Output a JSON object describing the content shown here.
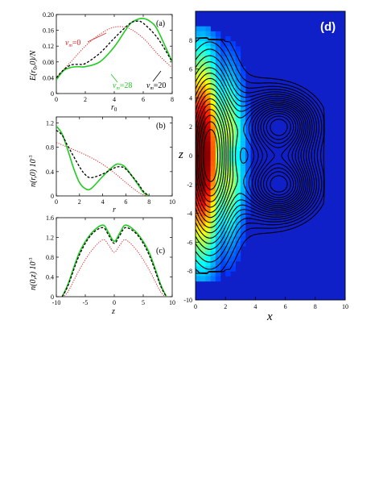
{
  "colors": {
    "red": "#e82020",
    "green": "#22cc22",
    "black": "#000000"
  },
  "chart_data": [
    {
      "type": "line",
      "panel": "(a)",
      "xlabel": "r0",
      "ylabel": "E(r0,0)/N",
      "xlim": [
        0,
        8
      ],
      "ylim": [
        0,
        0.2
      ],
      "xticks": [
        "0",
        "2",
        "4",
        "6",
        "8"
      ],
      "yticks": [
        "0",
        "0.04",
        "0.08",
        "0.12",
        "0.16",
        "0.20"
      ],
      "annotations": [
        "vm=0",
        "vm=28",
        "vm=20"
      ],
      "series": [
        {
          "name": "vm=0",
          "style": "red-dotted",
          "x": [
            0,
            1,
            2,
            3,
            4,
            5,
            6,
            7,
            8
          ],
          "y": [
            0.04,
            0.08,
            0.12,
            0.15,
            0.168,
            0.165,
            0.14,
            0.1,
            0.065
          ]
        },
        {
          "name": "vm=28",
          "style": "green-solid",
          "x": [
            0,
            0.5,
            1,
            1.5,
            2,
            3,
            4,
            5,
            5.5,
            6,
            6.5,
            7,
            8
          ],
          "y": [
            0.035,
            0.058,
            0.066,
            0.068,
            0.068,
            0.08,
            0.118,
            0.172,
            0.186,
            0.19,
            0.182,
            0.16,
            0.08
          ]
        },
        {
          "name": "vm=20",
          "style": "black-dashed",
          "x": [
            0,
            0.5,
            1,
            1.5,
            2,
            3,
            4,
            5,
            5.5,
            6,
            7,
            8
          ],
          "y": [
            0.04,
            0.06,
            0.072,
            0.074,
            0.076,
            0.102,
            0.14,
            0.175,
            0.183,
            0.178,
            0.14,
            0.08
          ]
        }
      ]
    },
    {
      "type": "line",
      "panel": "(b)",
      "xlabel": "r",
      "ylabel": "n(r,0) 10^-3",
      "xlim": [
        0,
        10
      ],
      "ylim": [
        0,
        1.3
      ],
      "xticks": [
        "0",
        "2",
        "4",
        "6",
        "8",
        "10"
      ],
      "yticks": [
        "0",
        "0.4",
        "0.8",
        "1.2"
      ],
      "series": [
        {
          "name": "vm=0",
          "style": "red-dotted",
          "x": [
            0,
            1,
            2,
            3,
            4,
            5,
            6,
            7,
            7.5,
            8
          ],
          "y": [
            0.88,
            0.8,
            0.72,
            0.63,
            0.52,
            0.38,
            0.22,
            0.07,
            0.02,
            0
          ]
        },
        {
          "name": "vm=28",
          "style": "green-solid",
          "x": [
            0,
            0.5,
            1,
            1.5,
            2,
            2.5,
            3,
            4,
            5,
            5.5,
            6,
            7,
            7.5,
            8
          ],
          "y": [
            1.15,
            1.02,
            0.75,
            0.45,
            0.22,
            0.12,
            0.12,
            0.32,
            0.5,
            0.52,
            0.46,
            0.2,
            0.06,
            0
          ]
        },
        {
          "name": "vm=20",
          "style": "black-dashed",
          "x": [
            0,
            0.5,
            1,
            2,
            2.5,
            3,
            4,
            5,
            5.5,
            6,
            7,
            7.5,
            8
          ],
          "y": [
            1.08,
            1.0,
            0.82,
            0.48,
            0.35,
            0.3,
            0.36,
            0.46,
            0.48,
            0.44,
            0.22,
            0.08,
            0
          ]
        }
      ]
    },
    {
      "type": "line",
      "panel": "(c)",
      "xlabel": "z",
      "ylabel": "n(0,z) 10^-3",
      "xlim": [
        -10,
        10
      ],
      "ylim": [
        0,
        1.6
      ],
      "xticks": [
        "-10",
        "-5",
        "0",
        "5",
        "10"
      ],
      "yticks": [
        "0",
        "0.4",
        "0.8",
        "1.2",
        "1.6"
      ],
      "series": [
        {
          "name": "vm=0",
          "style": "red-dotted",
          "x": [
            -9,
            -8,
            -6,
            -4,
            -2,
            -1,
            0,
            1,
            2,
            4,
            6,
            8,
            9
          ],
          "y": [
            0,
            0.1,
            0.55,
            0.92,
            1.15,
            1.05,
            0.9,
            1.05,
            1.15,
            0.92,
            0.55,
            0.1,
            0
          ]
        },
        {
          "name": "vm=28",
          "style": "green-solid",
          "x": [
            -9,
            -8,
            -6,
            -4,
            -2,
            -1,
            0,
            1,
            2,
            4,
            6,
            8,
            9
          ],
          "y": [
            0,
            0.25,
            0.9,
            1.28,
            1.45,
            1.3,
            1.12,
            1.3,
            1.45,
            1.28,
            0.9,
            0.25,
            0
          ]
        },
        {
          "name": "vm=20",
          "style": "black-dashed",
          "x": [
            -9,
            -8,
            -6,
            -4,
            -2,
            -1,
            0,
            1,
            2,
            4,
            6,
            8,
            9
          ],
          "y": [
            0,
            0.22,
            0.85,
            1.25,
            1.4,
            1.25,
            1.08,
            1.25,
            1.4,
            1.25,
            0.85,
            0.22,
            0
          ]
        }
      ]
    },
    {
      "type": "heatmap",
      "panel": "(d)",
      "xlabel": "x",
      "ylabel": "z",
      "xlim": [
        0,
        10
      ],
      "ylim": [
        -10,
        10
      ],
      "xticks": [
        "0",
        "2",
        "4",
        "6",
        "8",
        "10"
      ],
      "yticks": [
        "-10",
        "-8",
        "-6",
        "-4",
        "-2",
        "0",
        "2",
        "4",
        "6",
        "8"
      ],
      "colormap": "jet",
      "maxima": [
        {
          "x": 5.7,
          "z": 2.1
        },
        {
          "x": 5.7,
          "z": -2.1
        },
        {
          "x": 1.3,
          "z": 2.0
        },
        {
          "x": 1.3,
          "z": -2.0
        },
        {
          "x": 2.4,
          "z": 0
        }
      ],
      "contour_levels": 18
    }
  ],
  "labels": {
    "a_panel": "(a)",
    "b_panel": "(b)",
    "c_panel": "(c)",
    "d_panel": "(d)",
    "a_vm0": "v",
    "a_vm0_sub": "m",
    "a_vm0_val": "=0",
    "a_vm28": "v",
    "a_vm28_sub": "m",
    "a_vm28_val": "=28",
    "a_vm20": "v",
    "a_vm20_sub": "m",
    "a_vm20_val": "=20",
    "a_xlabel": "r",
    "a_xlabel_sub": "0",
    "a_ylabel_pre": "E(r",
    "a_ylabel_sub": "0",
    "a_ylabel_post": ",0)/N",
    "b_xlabel": "r",
    "b_ylabel": "n(r,0) 10",
    "b_ylabel_sup": "-3",
    "c_xlabel": "z",
    "c_ylabel": "n(0,z) 10",
    "c_ylabel_sup": "-3",
    "d_xlabel": "x",
    "d_ylabel": "z"
  }
}
